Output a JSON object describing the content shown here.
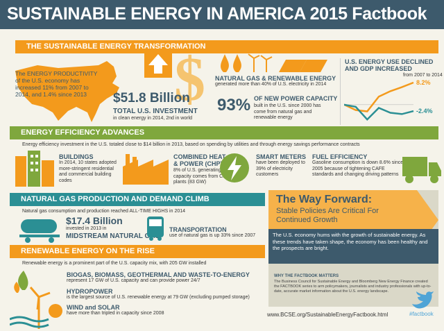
{
  "header": {
    "title": "SUSTAINABLE ENERGY IN AMERICA 2015 Factbook"
  },
  "transformation": {
    "title": "THE SUSTAINABLE ENERGY TRANSFORMATION",
    "productivity_text": "The ENERGY PRODUCTIVITY of the U.S. economy has increased 11% from 2007 to 2014, and 1.4% since 2013",
    "investment_amount": "$51.8 Billion",
    "investment_label": "TOTAL U.S. INVESTMENT",
    "investment_note": "in clean energy in 2014, 2nd in world",
    "gas_title": "NATURAL GAS & RENEWABLE ENERGY",
    "gas_text": "generated more than 40% of U.S. electricity in 2014",
    "pct_value": "93%",
    "power_title": "OF NEW POWER CAPACITY",
    "power_text": "built in the U.S. since 2000 has come from natural gas and renewable energy",
    "chart_title": "U.S. ENERGY USE DECLINED AND GDP INCREASED",
    "chart_sub": "from 2007 to 2014"
  },
  "chart_data": {
    "type": "line",
    "title": "U.S. ENERGY USE DECLINED AND GDP INCREASED",
    "subtitle": "from 2007 to 2014",
    "series": [
      {
        "values": [
          0,
          -2,
          -2.5,
          3,
          5,
          6.5,
          8.2
        ],
        "color": "#f39a1c"
      },
      {
        "values": [
          0,
          -0.8,
          -5.5,
          -1.2,
          -3,
          -3.5,
          -2.4
        ],
        "color": "#2b8f94"
      }
    ],
    "end_labels": [
      "8.2%",
      "-2.4%"
    ],
    "ylim": [
      -7,
      10
    ]
  },
  "efficiency": {
    "title": "ENERGY EFFICIENCY ADVANCES",
    "intro": "Energy efficiency investment in the U.S. totaled close to $14 billion in 2013, based on spending by utilities and through energy savings performance contracts",
    "buildings_title": "BUILDINGS",
    "buildings_text": "In 2014, 10 states adopted more-stringent residential and commercial building codes",
    "chp_title": "COMBINED HEAT & POWER (CHP)",
    "chp_text": "8% of U.S. generating capacity comes from CHP plants (83 GW)",
    "meters_title": "SMART METERS",
    "meters_text": "have been deployed to 39% of electricity customers",
    "fuel_title": "FUEL EFFICIENCY",
    "fuel_text": "Gasoline consumption is down 8.6% since 2005 because of tightening CAFE standards and changing driving patterns"
  },
  "gas": {
    "title": "NATURAL GAS PRODUCTION AND DEMAND CLIMB",
    "intro": "Natural gas consumption and production reached ALL-TIME HIGHS in 2014",
    "amount": "$17.4 Billion",
    "amount_note": "invested in 2013 in",
    "amount_label": "MIDSTREAM NATURAL GAS",
    "trans_title": "TRANSPORTATION",
    "trans_text": "use of natural gas is up 33% since 2007"
  },
  "renewable": {
    "title": "RENEWABLE ENERGY ON THE RISE",
    "intro": "Renewable energy is a prominent part of the U.S. capacity mix, with 205 GW installed",
    "bio_title": "BIOGAS, BIOMASS, GEOTHERMAL AND WASTE-TO-ENERGY",
    "bio_text": "represent 17 GW of U.S. capacity and can provide power 24/7",
    "hydro_title": "HYDROPOWER",
    "hydro_text": "is the largest source of U.S. renewable energy at 79 GW (excluding pumped storage)",
    "wind_title": "WIND and SOLAR",
    "wind_text": "have more than tripled in capacity since 2008"
  },
  "way": {
    "title": "The Way Forward:",
    "subtitle": "Stable Policies Are Critical For Continued Growth",
    "body": "The U.S. economy hums with the growth of sustainable energy. As these trends have taken shape, the economy has been healthy and the prospects are bright.",
    "why_title": "WHY THE FACTBOOK MATTERS",
    "why_text": "The Business Council for Sustainable Energy and Bloomberg New Energy Finance created the FACTBOOK series to arm policymakers, journalists and industry professionals with up-to-date, accurate market information about the U.S. energy landscape."
  },
  "footer": {
    "url": "www.BCSE.org/SustainableEnergyFactbook.html",
    "hashtag": "#factbook"
  }
}
